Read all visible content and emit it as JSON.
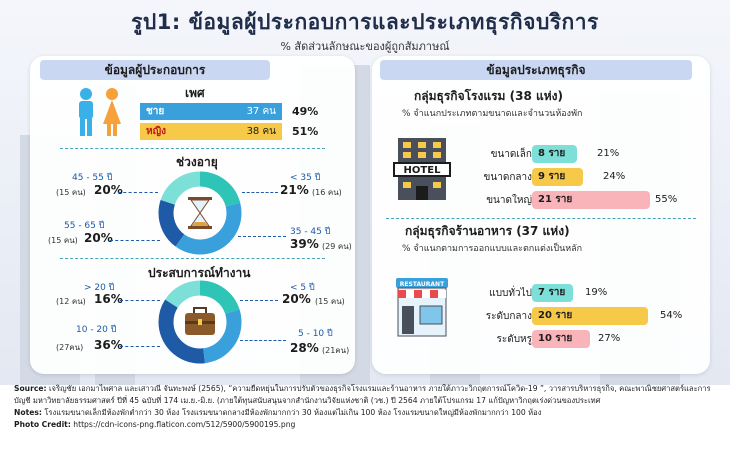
{
  "title": "รูป1: ข้อมูลผู้ประกอบการและประเภทธุรกิจบริการ",
  "subtitle": "% สัดส่วนลักษณะของผู้ถูกสัมภาษณ์",
  "left_panel": {
    "header": "ข้อมูลผู้ประกอบการ",
    "gender_title": "เพศ",
    "age_title": "ช่วงอายุ",
    "exp_title": "ประสบการณ์ทำงาน"
  },
  "right_panel": {
    "header": "ข้อมูลประเภทธุรกิจ",
    "hotel_title": "กลุ่มธุรกิจโรงแรม (38 แห่ง)",
    "hotel_sub": "% จำแนกประเภทตามขนาดและจำนวนห้องพัก",
    "hotel_sign": "HOTEL",
    "rest_title": "กลุ่มธุรกิจร้านอาหาร (37 แห่ง)",
    "rest_sub": "% จำแนกตามการออกแบบและตกแต่งเป็นหลัก",
    "rest_sign": "RESTAURANT"
  },
  "colors": {
    "blue": "#3aa0dc",
    "teal": "#2ec4b6",
    "yellow": "#f7c948",
    "orange": "#f6a13a",
    "pink": "#f8b4b9",
    "mint": "#7de0d8",
    "navy": "#1f5aa6",
    "gray": "#c9ced8"
  },
  "chart_data": [
    {
      "type": "bar",
      "title": "เพศ",
      "categories": [
        "ชาย",
        "หญิง"
      ],
      "counts": [
        "37 คน",
        "38 คน"
      ],
      "values": [
        49,
        51
      ]
    },
    {
      "type": "pie",
      "title": "ช่วงอายุ",
      "slices": [
        {
          "label": "< 35 ปี",
          "value": 21,
          "pct": "21%",
          "count": "(16 คน)"
        },
        {
          "label": "35 - 45 ปี",
          "value": 39,
          "pct": "39%",
          "count": "(29 คน)"
        },
        {
          "label": "55 - 65 ปี",
          "value": 20,
          "pct": "20%",
          "count": "(15 คน)"
        },
        {
          "label": "45 - 55 ปี",
          "value": 20,
          "pct": "20%",
          "count": "(15 คน)"
        }
      ]
    },
    {
      "type": "pie",
      "title": "ประสบการณ์ทำงาน",
      "slices": [
        {
          "label": "< 5 ปี",
          "value": 20,
          "pct": "20%",
          "count": "(15 คน)"
        },
        {
          "label": "5 - 10 ปี",
          "value": 28,
          "pct": "28%",
          "count": "(21คน)"
        },
        {
          "label": "10 - 20 ปี",
          "value": 36,
          "pct": "36%",
          "count": "(27คน)"
        },
        {
          "label": "> 20 ปี",
          "value": 16,
          "pct": "16%",
          "count": "(12 คน)"
        }
      ]
    },
    {
      "type": "bar",
      "title": "กลุ่มธุรกิจโรงแรม (38 แห่ง)",
      "categories": [
        "ขนาดเล็ก",
        "ขนาดกลาง",
        "ขนาดใหญ่"
      ],
      "counts": [
        "8 ราย",
        "9 ราย",
        "21 ราย"
      ],
      "values": [
        21,
        24,
        55
      ],
      "pcts": [
        "21%",
        "24%",
        "55%"
      ]
    },
    {
      "type": "bar",
      "title": "กลุ่มธุรกิจร้านอาหาร (37 แห่ง)",
      "categories": [
        "แบบทั่วไป",
        "ระดับกลาง",
        "ระดับหรู"
      ],
      "counts": [
        "7 ราย",
        "20 ราย",
        "10 ราย"
      ],
      "values": [
        19,
        54,
        27
      ],
      "pcts": [
        "19%",
        "54%",
        "27%"
      ]
    }
  ],
  "footer": {
    "source_label": "Source:",
    "source_text": "เจริญชัย เอกมาไพศาล และเสาวณี จันทะพงษ์ (2565), “ความยืดหยุ่นในการปรับตัวของธุรกิจโรงแรมและร้านอาหาร ภายใต้ภาวะวิกฤตการณ์โควิด-19 ”, วารสารบริหารธุรกิจ, คณะพาณิชยศาสตร์และการบัญชี มหาวิทยาลัยธรรมศาสตร์ ปีที่ 45 ฉบับที่ 174 เม.ย.-มิ.ย. (ภายใต้ทุนสนับสนุนจากสำนักงานวิจัยแห่งชาติ (วช.) ปี 2564 ภายใต้โปรแกรม 17 แก้ปัญหาวิกฤตเร่งด่วนของประเทศ",
    "notes_label": "Notes:",
    "notes_text": "โรงแรมขนาดเล็กมีห้องพักต่ำกว่า 30 ห้อง โรงแรมขนาดกลางมีห้องพักมากกว่า 30 ห้องแต่ไม่เกิน 100 ห้อง โรงแรมขนาดใหญ่มีห้องพักมากกว่า 100 ห้อง",
    "credit_label": "Photo Credit:",
    "credit_text": "https://cdn-icons-png.flaticon.com/512/5900/5900195.png"
  }
}
